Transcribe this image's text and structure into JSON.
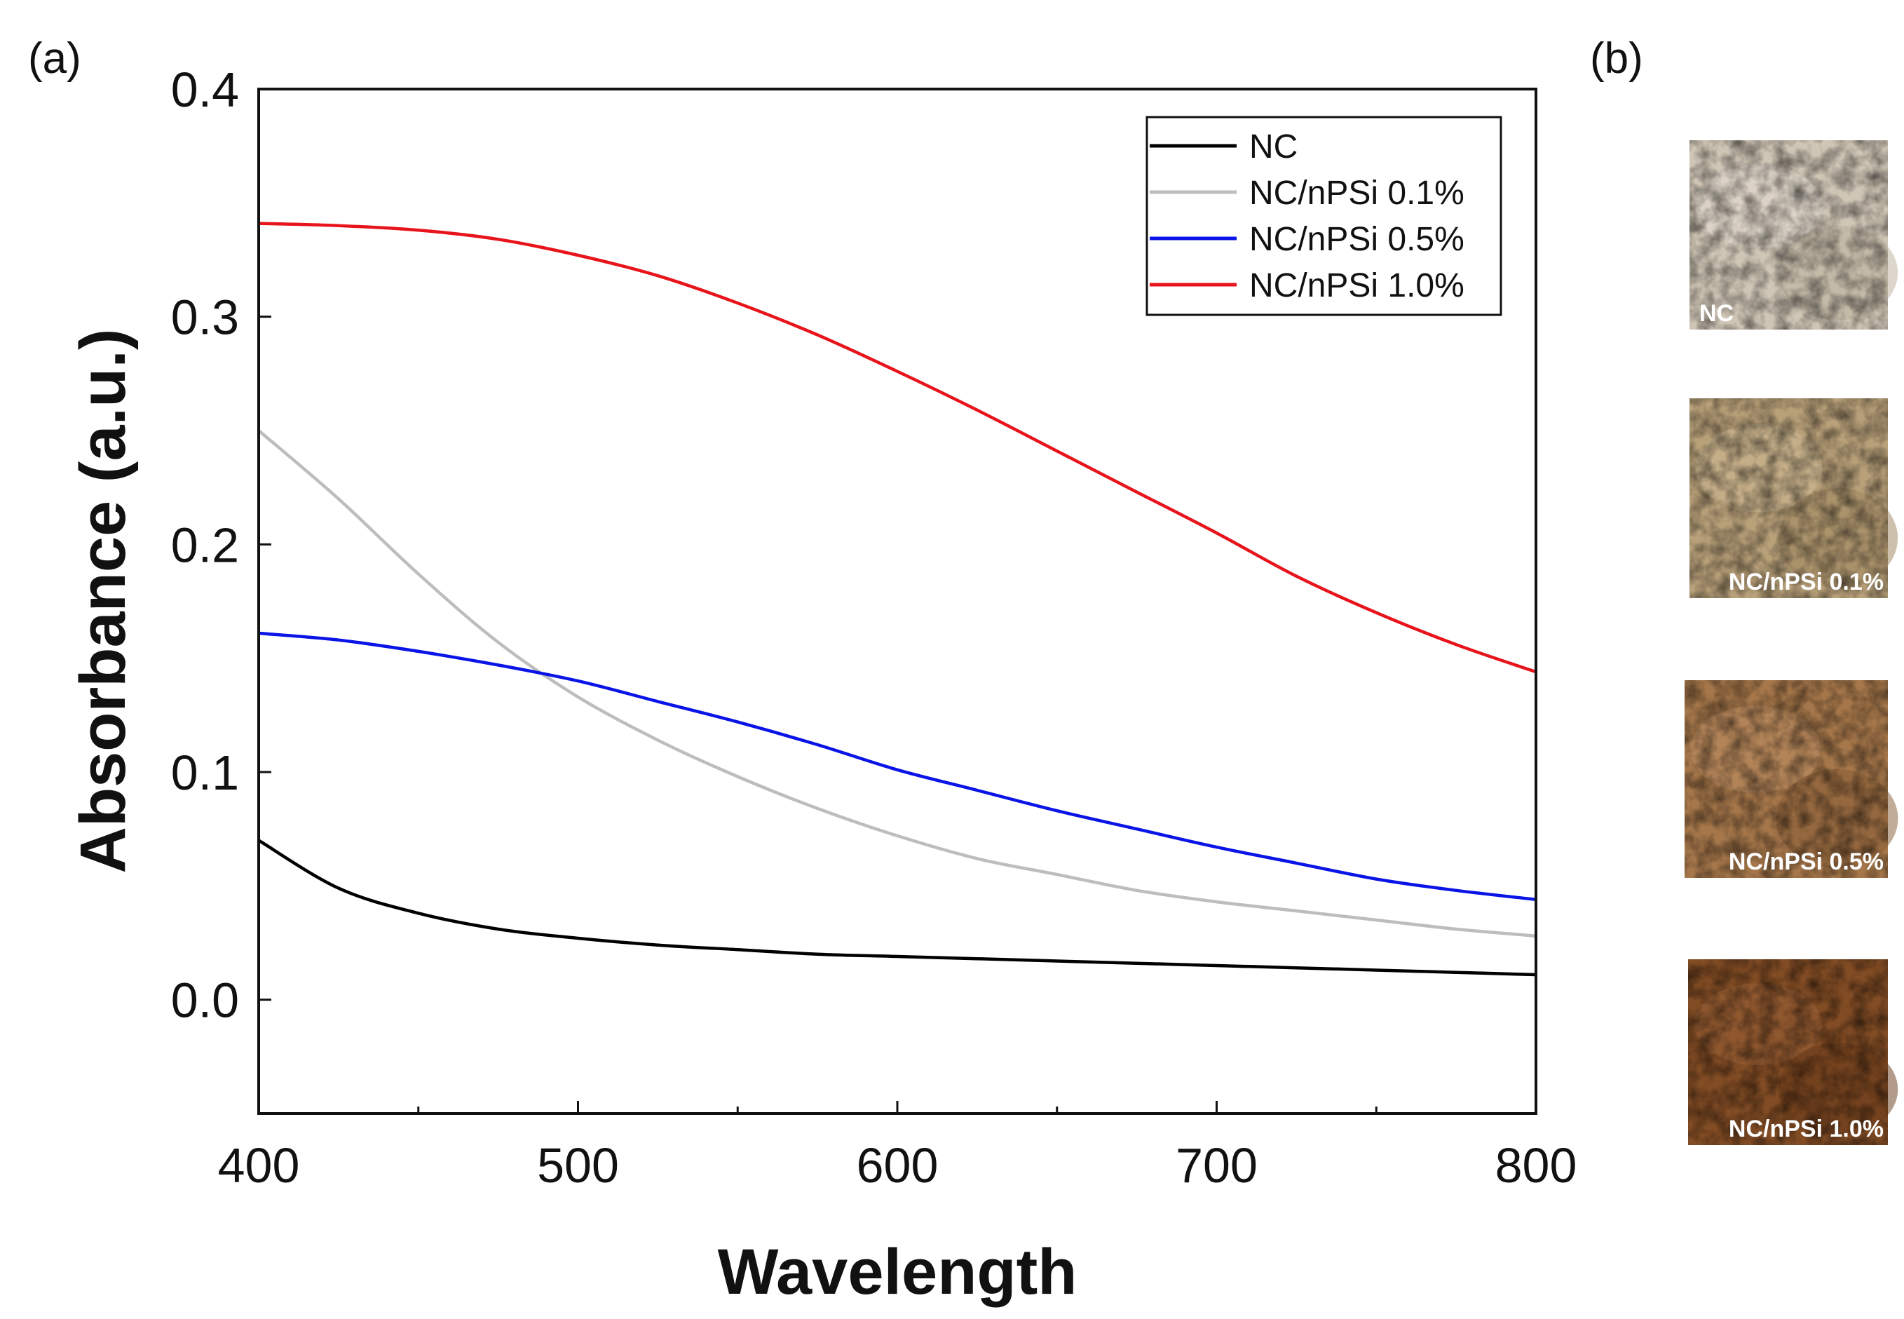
{
  "panel_labels": {
    "a": "(a)",
    "b": "(b)"
  },
  "chart_data": {
    "type": "line",
    "title": "",
    "xlabel": "Wavelength",
    "ylabel": "Absorbance (a.u.)",
    "xlim": [
      400,
      800
    ],
    "ylim": [
      -0.05,
      0.4
    ],
    "x_ticks": [
      400,
      500,
      600,
      700,
      800
    ],
    "x_tick_labels": [
      "400",
      "500",
      "600",
      "700",
      "800"
    ],
    "y_ticks": [
      0.0,
      0.1,
      0.2,
      0.3,
      0.4
    ],
    "y_tick_labels": [
      "0.0",
      "0.1",
      "0.2",
      "0.3",
      "0.4"
    ],
    "grid": false,
    "legend_position": "top-right",
    "x": [
      400,
      425,
      450,
      475,
      500,
      525,
      550,
      575,
      600,
      625,
      650,
      675,
      700,
      725,
      750,
      775,
      800
    ],
    "series": [
      {
        "name": "NC",
        "color": "#000000",
        "values": [
          0.07,
          0.049,
          0.038,
          0.031,
          0.027,
          0.024,
          0.022,
          0.02,
          0.019,
          0.018,
          0.017,
          0.016,
          0.015,
          0.014,
          0.013,
          0.012,
          0.011
        ]
      },
      {
        "name": "NC/nPSi 0.1%",
        "color": "#bdbdbd",
        "values": [
          0.25,
          0.22,
          0.187,
          0.157,
          0.133,
          0.114,
          0.098,
          0.084,
          0.072,
          0.062,
          0.055,
          0.048,
          0.043,
          0.039,
          0.035,
          0.031,
          0.028
        ]
      },
      {
        "name": "NC/nPSi 0.5%",
        "color": "#0a14e6",
        "values": [
          0.161,
          0.158,
          0.153,
          0.147,
          0.14,
          0.131,
          0.122,
          0.112,
          0.101,
          0.092,
          0.083,
          0.075,
          0.067,
          0.06,
          0.053,
          0.048,
          0.044
        ]
      },
      {
        "name": "NC/nPSi 1.0%",
        "color": "#e8141c",
        "values": [
          0.341,
          0.34,
          0.338,
          0.334,
          0.327,
          0.318,
          0.306,
          0.292,
          0.276,
          0.259,
          0.241,
          0.223,
          0.205,
          0.186,
          0.17,
          0.156,
          0.144
        ]
      }
    ]
  },
  "photos": [
    {
      "label": "NC",
      "base": "#d0c6b6",
      "shade": "#b9ad9a",
      "light": "#e6dfd3"
    },
    {
      "label": "NC/nPSi 0.1%",
      "base": "#b8a079",
      "shade": "#9c845d",
      "light": "#cdb995"
    },
    {
      "label": "NC/nPSi 0.5%",
      "base": "#a6774a",
      "shade": "#835a34",
      "light": "#bd9064"
    },
    {
      "label": "NC/nPSi 1.0%",
      "base": "#824c24",
      "shade": "#663817",
      "light": "#9a6036"
    }
  ]
}
